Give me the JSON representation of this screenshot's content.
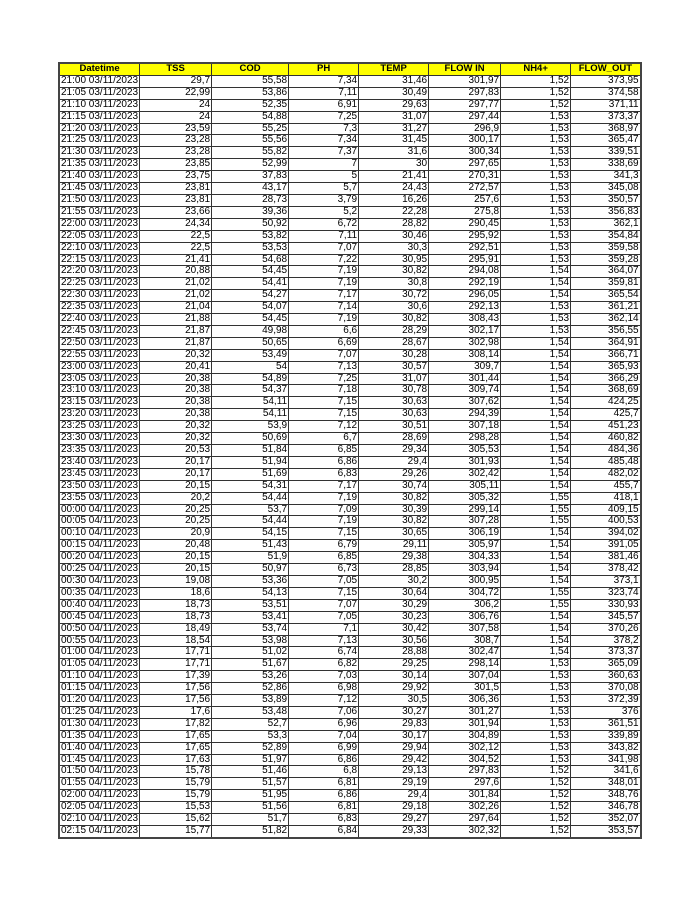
{
  "table": {
    "columns": [
      "Datetime",
      "TSS",
      "COD",
      "PH",
      "TEMP",
      "FLOW IN",
      "NH4+",
      "FLOW_OUT"
    ],
    "header_color": "#ffff00",
    "rows": [
      [
        "21:00 03/11/2023",
        "29,7",
        "55,58",
        "7,34",
        "31,46",
        "301,97",
        "1,52",
        "373,95"
      ],
      [
        "21:05 03/11/2023",
        "22,99",
        "53,86",
        "7,11",
        "30,49",
        "297,83",
        "1,52",
        "374,58"
      ],
      [
        "21:10 03/11/2023",
        "24",
        "52,35",
        "6,91",
        "29,63",
        "297,77",
        "1,52",
        "371,11"
      ],
      [
        "21:15 03/11/2023",
        "24",
        "54,88",
        "7,25",
        "31,07",
        "297,44",
        "1,53",
        "373,37"
      ],
      [
        "21:20 03/11/2023",
        "23,59",
        "55,25",
        "7,3",
        "31,27",
        "296,9",
        "1,53",
        "368,97"
      ],
      [
        "21:25 03/11/2023",
        "23,28",
        "55,56",
        "7,34",
        "31,45",
        "300,17",
        "1,53",
        "365,47"
      ],
      [
        "21:30 03/11/2023",
        "23,28",
        "55,82",
        "7,37",
        "31,6",
        "300,34",
        "1,53",
        "339,51"
      ],
      [
        "21:35 03/11/2023",
        "23,85",
        "52,99",
        "7",
        "30",
        "297,65",
        "1,53",
        "338,69"
      ],
      [
        "21:40 03/11/2023",
        "23,75",
        "37,83",
        "5",
        "21,41",
        "270,31",
        "1,53",
        "341,3"
      ],
      [
        "21:45 03/11/2023",
        "23,81",
        "43,17",
        "5,7",
        "24,43",
        "272,57",
        "1,53",
        "345,08"
      ],
      [
        "21:50 03/11/2023",
        "23,81",
        "28,73",
        "3,79",
        "16,26",
        "257,6",
        "1,53",
        "350,57"
      ],
      [
        "21:55 03/11/2023",
        "23,66",
        "39,36",
        "5,2",
        "22,28",
        "275,8",
        "1,53",
        "356,83"
      ],
      [
        "22:00 03/11/2023",
        "24,34",
        "50,92",
        "6,72",
        "28,82",
        "290,45",
        "1,53",
        "362,1"
      ],
      [
        "22:05 03/11/2023",
        "22,5",
        "53,82",
        "7,11",
        "30,46",
        "295,92",
        "1,53",
        "354,84"
      ],
      [
        "22:10 03/11/2023",
        "22,5",
        "53,53",
        "7,07",
        "30,3",
        "292,51",
        "1,53",
        "359,58"
      ],
      [
        "22:15 03/11/2023",
        "21,41",
        "54,68",
        "7,22",
        "30,95",
        "295,91",
        "1,53",
        "359,28"
      ],
      [
        "22:20 03/11/2023",
        "20,88",
        "54,45",
        "7,19",
        "30,82",
        "294,08",
        "1,54",
        "364,07"
      ],
      [
        "22:25 03/11/2023",
        "21,02",
        "54,41",
        "7,19",
        "30,8",
        "292,19",
        "1,54",
        "359,81"
      ],
      [
        "22:30 03/11/2023",
        "21,02",
        "54,27",
        "7,17",
        "30,72",
        "296,05",
        "1,54",
        "365,54"
      ],
      [
        "22:35 03/11/2023",
        "21,04",
        "54,07",
        "7,14",
        "30,6",
        "292,13",
        "1,53",
        "361,21"
      ],
      [
        "22:40 03/11/2023",
        "21,88",
        "54,45",
        "7,19",
        "30,82",
        "308,43",
        "1,53",
        "362,14"
      ],
      [
        "22:45 03/11/2023",
        "21,87",
        "49,98",
        "6,6",
        "28,29",
        "302,17",
        "1,53",
        "356,55"
      ],
      [
        "22:50 03/11/2023",
        "21,87",
        "50,65",
        "6,69",
        "28,67",
        "302,98",
        "1,54",
        "364,91"
      ],
      [
        "22:55 03/11/2023",
        "20,32",
        "53,49",
        "7,07",
        "30,28",
        "308,14",
        "1,54",
        "366,71"
      ],
      [
        "23:00 03/11/2023",
        "20,41",
        "54",
        "7,13",
        "30,57",
        "309,7",
        "1,54",
        "365,93"
      ],
      [
        "23:05 03/11/2023",
        "20,38",
        "54,89",
        "7,25",
        "31,07",
        "301,44",
        "1,54",
        "366,29"
      ],
      [
        "23:10 03/11/2023",
        "20,38",
        "54,37",
        "7,18",
        "30,78",
        "309,74",
        "1,54",
        "368,69"
      ],
      [
        "23:15 03/11/2023",
        "20,38",
        "54,11",
        "7,15",
        "30,63",
        "307,62",
        "1,54",
        "424,25"
      ],
      [
        "23:20 03/11/2023",
        "20,38",
        "54,11",
        "7,15",
        "30,63",
        "294,39",
        "1,54",
        "425,7"
      ],
      [
        "23:25 03/11/2023",
        "20,32",
        "53,9",
        "7,12",
        "30,51",
        "307,18",
        "1,54",
        "451,23"
      ],
      [
        "23:30 03/11/2023",
        "20,32",
        "50,69",
        "6,7",
        "28,69",
        "298,28",
        "1,54",
        "460,82"
      ],
      [
        "23:35 03/11/2023",
        "20,53",
        "51,84",
        "6,85",
        "29,34",
        "305,53",
        "1,54",
        "484,36"
      ],
      [
        "23:40 03/11/2023",
        "20,17",
        "51,94",
        "6,86",
        "29,4",
        "301,93",
        "1,54",
        "485,48"
      ],
      [
        "23:45 03/11/2023",
        "20,17",
        "51,69",
        "6,83",
        "29,26",
        "302,42",
        "1,54",
        "482,02"
      ],
      [
        "23:50 03/11/2023",
        "20,15",
        "54,31",
        "7,17",
        "30,74",
        "305,11",
        "1,54",
        "455,7"
      ],
      [
        "23:55 03/11/2023",
        "20,2",
        "54,44",
        "7,19",
        "30,82",
        "305,32",
        "1,55",
        "418,1"
      ],
      [
        "00:00 04/11/2023",
        "20,25",
        "53,7",
        "7,09",
        "30,39",
        "299,14",
        "1,55",
        "409,15"
      ],
      [
        "00:05 04/11/2023",
        "20,25",
        "54,44",
        "7,19",
        "30,82",
        "307,28",
        "1,55",
        "400,53"
      ],
      [
        "00:10 04/11/2023",
        "20,9",
        "54,15",
        "7,15",
        "30,65",
        "306,19",
        "1,54",
        "394,02"
      ],
      [
        "00:15 04/11/2023",
        "20,48",
        "51,43",
        "6,79",
        "29,11",
        "305,97",
        "1,54",
        "391,05"
      ],
      [
        "00:20 04/11/2023",
        "20,15",
        "51,9",
        "6,85",
        "29,38",
        "304,33",
        "1,54",
        "381,46"
      ],
      [
        "00:25 04/11/2023",
        "20,15",
        "50,97",
        "6,73",
        "28,85",
        "303,94",
        "1,54",
        "378,42"
      ],
      [
        "00:30 04/11/2023",
        "19,08",
        "53,36",
        "7,05",
        "30,2",
        "300,95",
        "1,54",
        "373,1"
      ],
      [
        "00:35 04/11/2023",
        "18,6",
        "54,13",
        "7,15",
        "30,64",
        "304,72",
        "1,55",
        "323,74"
      ],
      [
        "00:40 04/11/2023",
        "18,73",
        "53,51",
        "7,07",
        "30,29",
        "306,2",
        "1,55",
        "330,93"
      ],
      [
        "00:45 04/11/2023",
        "18,73",
        "53,41",
        "7,05",
        "30,23",
        "306,76",
        "1,54",
        "345,57"
      ],
      [
        "00:50 04/11/2023",
        "18,49",
        "53,74",
        "7,1",
        "30,42",
        "307,58",
        "1,54",
        "370,26"
      ],
      [
        "00:55 04/11/2023",
        "18,54",
        "53,98",
        "7,13",
        "30,56",
        "308,7",
        "1,54",
        "378,2"
      ],
      [
        "01:00 04/11/2023",
        "17,71",
        "51,02",
        "6,74",
        "28,88",
        "302,47",
        "1,54",
        "373,37"
      ],
      [
        "01:05 04/11/2023",
        "17,71",
        "51,67",
        "6,82",
        "29,25",
        "298,14",
        "1,53",
        "365,09"
      ],
      [
        "01:10 04/11/2023",
        "17,39",
        "53,26",
        "7,03",
        "30,14",
        "307,04",
        "1,53",
        "360,63"
      ],
      [
        "01:15 04/11/2023",
        "17,56",
        "52,86",
        "6,98",
        "29,92",
        "301,5",
        "1,53",
        "370,08"
      ],
      [
        "01:20 04/11/2023",
        "17,56",
        "53,89",
        "7,12",
        "30,5",
        "306,36",
        "1,53",
        "372,39"
      ],
      [
        "01:25 04/11/2023",
        "17,6",
        "53,48",
        "7,06",
        "30,27",
        "301,27",
        "1,53",
        "376"
      ],
      [
        "01:30 04/11/2023",
        "17,82",
        "52,7",
        "6,96",
        "29,83",
        "301,94",
        "1,53",
        "361,51"
      ],
      [
        "01:35 04/11/2023",
        "17,65",
        "53,3",
        "7,04",
        "30,17",
        "304,89",
        "1,53",
        "339,89"
      ],
      [
        "01:40 04/11/2023",
        "17,65",
        "52,89",
        "6,99",
        "29,94",
        "302,12",
        "1,53",
        "343,82"
      ],
      [
        "01:45 04/11/2023",
        "17,63",
        "51,97",
        "6,86",
        "29,42",
        "304,52",
        "1,53",
        "341,98"
      ],
      [
        "01:50 04/11/2023",
        "15,78",
        "51,46",
        "6,8",
        "29,13",
        "297,83",
        "1,52",
        "341,6"
      ],
      [
        "01:55 04/11/2023",
        "15,79",
        "51,57",
        "6,81",
        "29,19",
        "297,6",
        "1,52",
        "348,01"
      ],
      [
        "02:00 04/11/2023",
        "15,79",
        "51,95",
        "6,86",
        "29,4",
        "301,84",
        "1,52",
        "348,76"
      ],
      [
        "02:05 04/11/2023",
        "15,53",
        "51,56",
        "6,81",
        "29,18",
        "302,26",
        "1,52",
        "346,78"
      ],
      [
        "02:10 04/11/2023",
        "15,62",
        "51,7",
        "6,83",
        "29,27",
        "297,64",
        "1,52",
        "352,07"
      ],
      [
        "02:15 04/11/2023",
        "15,77",
        "51,82",
        "6,84",
        "29,33",
        "302,32",
        "1,52",
        "353,57"
      ]
    ]
  }
}
